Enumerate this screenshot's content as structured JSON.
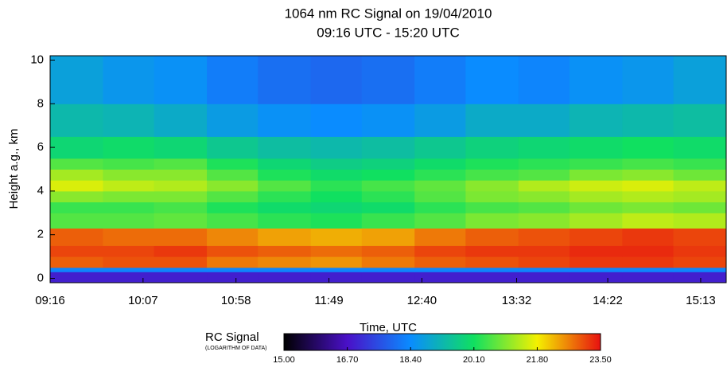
{
  "chart_data": {
    "type": "heatmap",
    "title": "1064 nm RC Signal on 19/04/2010",
    "subtitle": "09:16 UTC - 15:20 UTC",
    "x_label": "Time, UTC",
    "y_label": "Height a.g., km",
    "xlim": [
      556,
      927
    ],
    "xticks": [
      {
        "value": 556,
        "label": "09:16"
      },
      {
        "value": 607,
        "label": "10:07"
      },
      {
        "value": 658,
        "label": "10:58"
      },
      {
        "value": 709,
        "label": "11:49"
      },
      {
        "value": 760,
        "label": "12:40"
      },
      {
        "value": 812,
        "label": "13:32"
      },
      {
        "value": 862,
        "label": "14:22"
      },
      {
        "value": 913,
        "label": "15:13"
      }
    ],
    "ylim": [
      -0.2,
      10.2
    ],
    "yticks": [
      0,
      2,
      4,
      6,
      8,
      10
    ],
    "xbins": [
      556,
      585,
      613,
      642,
      670,
      699,
      727,
      756,
      784,
      813,
      841,
      870,
      898,
      927
    ],
    "ybins": [
      -0.2,
      0.3,
      0.5,
      1,
      1.5,
      2.3,
      3,
      3.5,
      4,
      4.5,
      5,
      5.5,
      6.5,
      8,
      10.2
    ],
    "z": [
      [
        16.9,
        16.9,
        16.9,
        16.9,
        16.9,
        16.9,
        16.9,
        16.9,
        16.9,
        16.9,
        16.9,
        16.9,
        16.9
      ],
      [
        18.3,
        18.3,
        18.3,
        18.3,
        18.3,
        18.3,
        18.3,
        18.3,
        18.3,
        18.3,
        18.3,
        18.3,
        18.3
      ],
      [
        22.9,
        23.0,
        23.0,
        22.7,
        22.6,
        22.5,
        22.7,
        22.9,
        23.0,
        23.1,
        23.2,
        23.2,
        23.1
      ],
      [
        23.1,
        23.1,
        23.2,
        23.0,
        22.9,
        22.8,
        22.9,
        23.1,
        23.2,
        23.2,
        23.3,
        23.3,
        23.2
      ],
      [
        22.9,
        22.8,
        22.8,
        22.6,
        22.4,
        22.3,
        22.4,
        22.7,
        22.9,
        23.0,
        23.1,
        23.2,
        23.1
      ],
      [
        20.6,
        20.6,
        20.7,
        20.5,
        20.3,
        20.2,
        20.4,
        20.6,
        20.9,
        21.0,
        21.2,
        21.4,
        21.3
      ],
      [
        20.4,
        20.4,
        20.5,
        20.2,
        20.0,
        19.9,
        20.0,
        20.3,
        20.5,
        20.6,
        20.8,
        20.9,
        20.8
      ],
      [
        21.0,
        20.9,
        20.9,
        20.6,
        20.3,
        20.1,
        20.3,
        20.6,
        20.9,
        21.0,
        21.2,
        21.3,
        21.2
      ],
      [
        21.6,
        21.4,
        21.3,
        21.0,
        20.6,
        20.3,
        20.5,
        20.7,
        21.0,
        21.3,
        21.5,
        21.6,
        21.4
      ],
      [
        21.2,
        21.0,
        21.0,
        20.6,
        20.2,
        20.0,
        20.1,
        20.3,
        20.5,
        20.6,
        20.9,
        21.0,
        20.8
      ],
      [
        20.6,
        20.5,
        20.6,
        20.2,
        19.9,
        19.7,
        19.8,
        20.0,
        20.2,
        20.3,
        20.4,
        20.5,
        20.4
      ],
      [
        19.9,
        20.0,
        19.9,
        19.6,
        19.4,
        19.3,
        19.4,
        19.6,
        19.8,
        19.9,
        20.0,
        20.1,
        20.0
      ],
      [
        19.3,
        19.2,
        19.0,
        18.7,
        18.5,
        18.4,
        18.5,
        18.7,
        19.0,
        19.0,
        19.2,
        19.3,
        19.4
      ],
      [
        18.8,
        18.6,
        18.5,
        18.2,
        18.0,
        17.9,
        18.0,
        18.2,
        18.4,
        18.3,
        18.5,
        18.6,
        18.8
      ]
    ],
    "colorbar_title": "RC Signal",
    "colorbar_subtitle": "(LOGARITHM OF DATA)",
    "zlim": [
      15,
      23.5
    ],
    "zticks": [
      {
        "value": 15,
        "label": "15.00"
      },
      {
        "value": 16.7,
        "label": "16.70"
      },
      {
        "value": 18.4,
        "label": "18.40"
      },
      {
        "value": 20.1,
        "label": "20.10"
      },
      {
        "value": 21.8,
        "label": "21.80"
      },
      {
        "value": 23.5,
        "label": "23.50"
      }
    ],
    "colors": [
      "#000000",
      "#4a10c8",
      "#0a8cff",
      "#10e060",
      "#f4f000",
      "#e81010"
    ]
  }
}
